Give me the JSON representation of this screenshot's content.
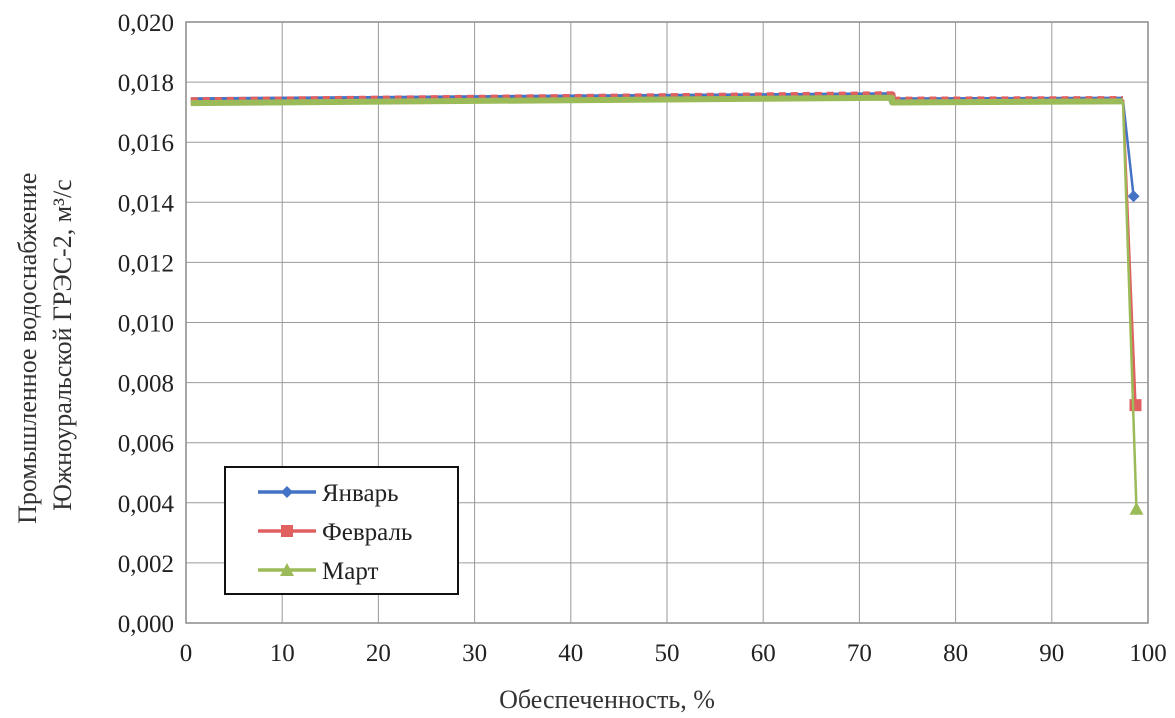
{
  "chart_data": {
    "type": "line",
    "title": "",
    "xlabel": "Обеспеченность, %",
    "ylabel_lines": [
      "Промышленное водоснабжение",
      "Южноуральской ГРЭС-2, м³/с"
    ],
    "xlim": [
      0,
      100
    ],
    "ylim": [
      0,
      0.02
    ],
    "x_ticks": [
      "0",
      "10",
      "20",
      "30",
      "40",
      "50",
      "60",
      "70",
      "80",
      "90",
      "100"
    ],
    "y_ticks": [
      "0,000",
      "0,002",
      "0,004",
      "0,006",
      "0,008",
      "0,010",
      "0,012",
      "0,014",
      "0,016",
      "0,018",
      "0,020"
    ],
    "grid": true,
    "legend_position": "bottom-left",
    "series": [
      {
        "name": "Январь",
        "color": "#4472C4",
        "marker": "diamond",
        "x": [
          0.5,
          73.4,
          73.4,
          97.4,
          98.5
        ],
        "y": [
          0.01738,
          0.01755,
          0.01738,
          0.0174,
          0.0142
        ]
      },
      {
        "name": "Февраль",
        "color": "#E06060",
        "marker": "square",
        "x": [
          0.5,
          73.4,
          73.4,
          97.4,
          98.7
        ],
        "y": [
          0.01738,
          0.01758,
          0.0174,
          0.01742,
          0.00725
        ]
      },
      {
        "name": "Март",
        "color": "#9BBB59",
        "marker": "triangle",
        "x": [
          0.5,
          73.4,
          73.4,
          97.4,
          98.8
        ],
        "y": [
          0.0173,
          0.01748,
          0.01732,
          0.01736,
          0.0038
        ]
      }
    ]
  }
}
